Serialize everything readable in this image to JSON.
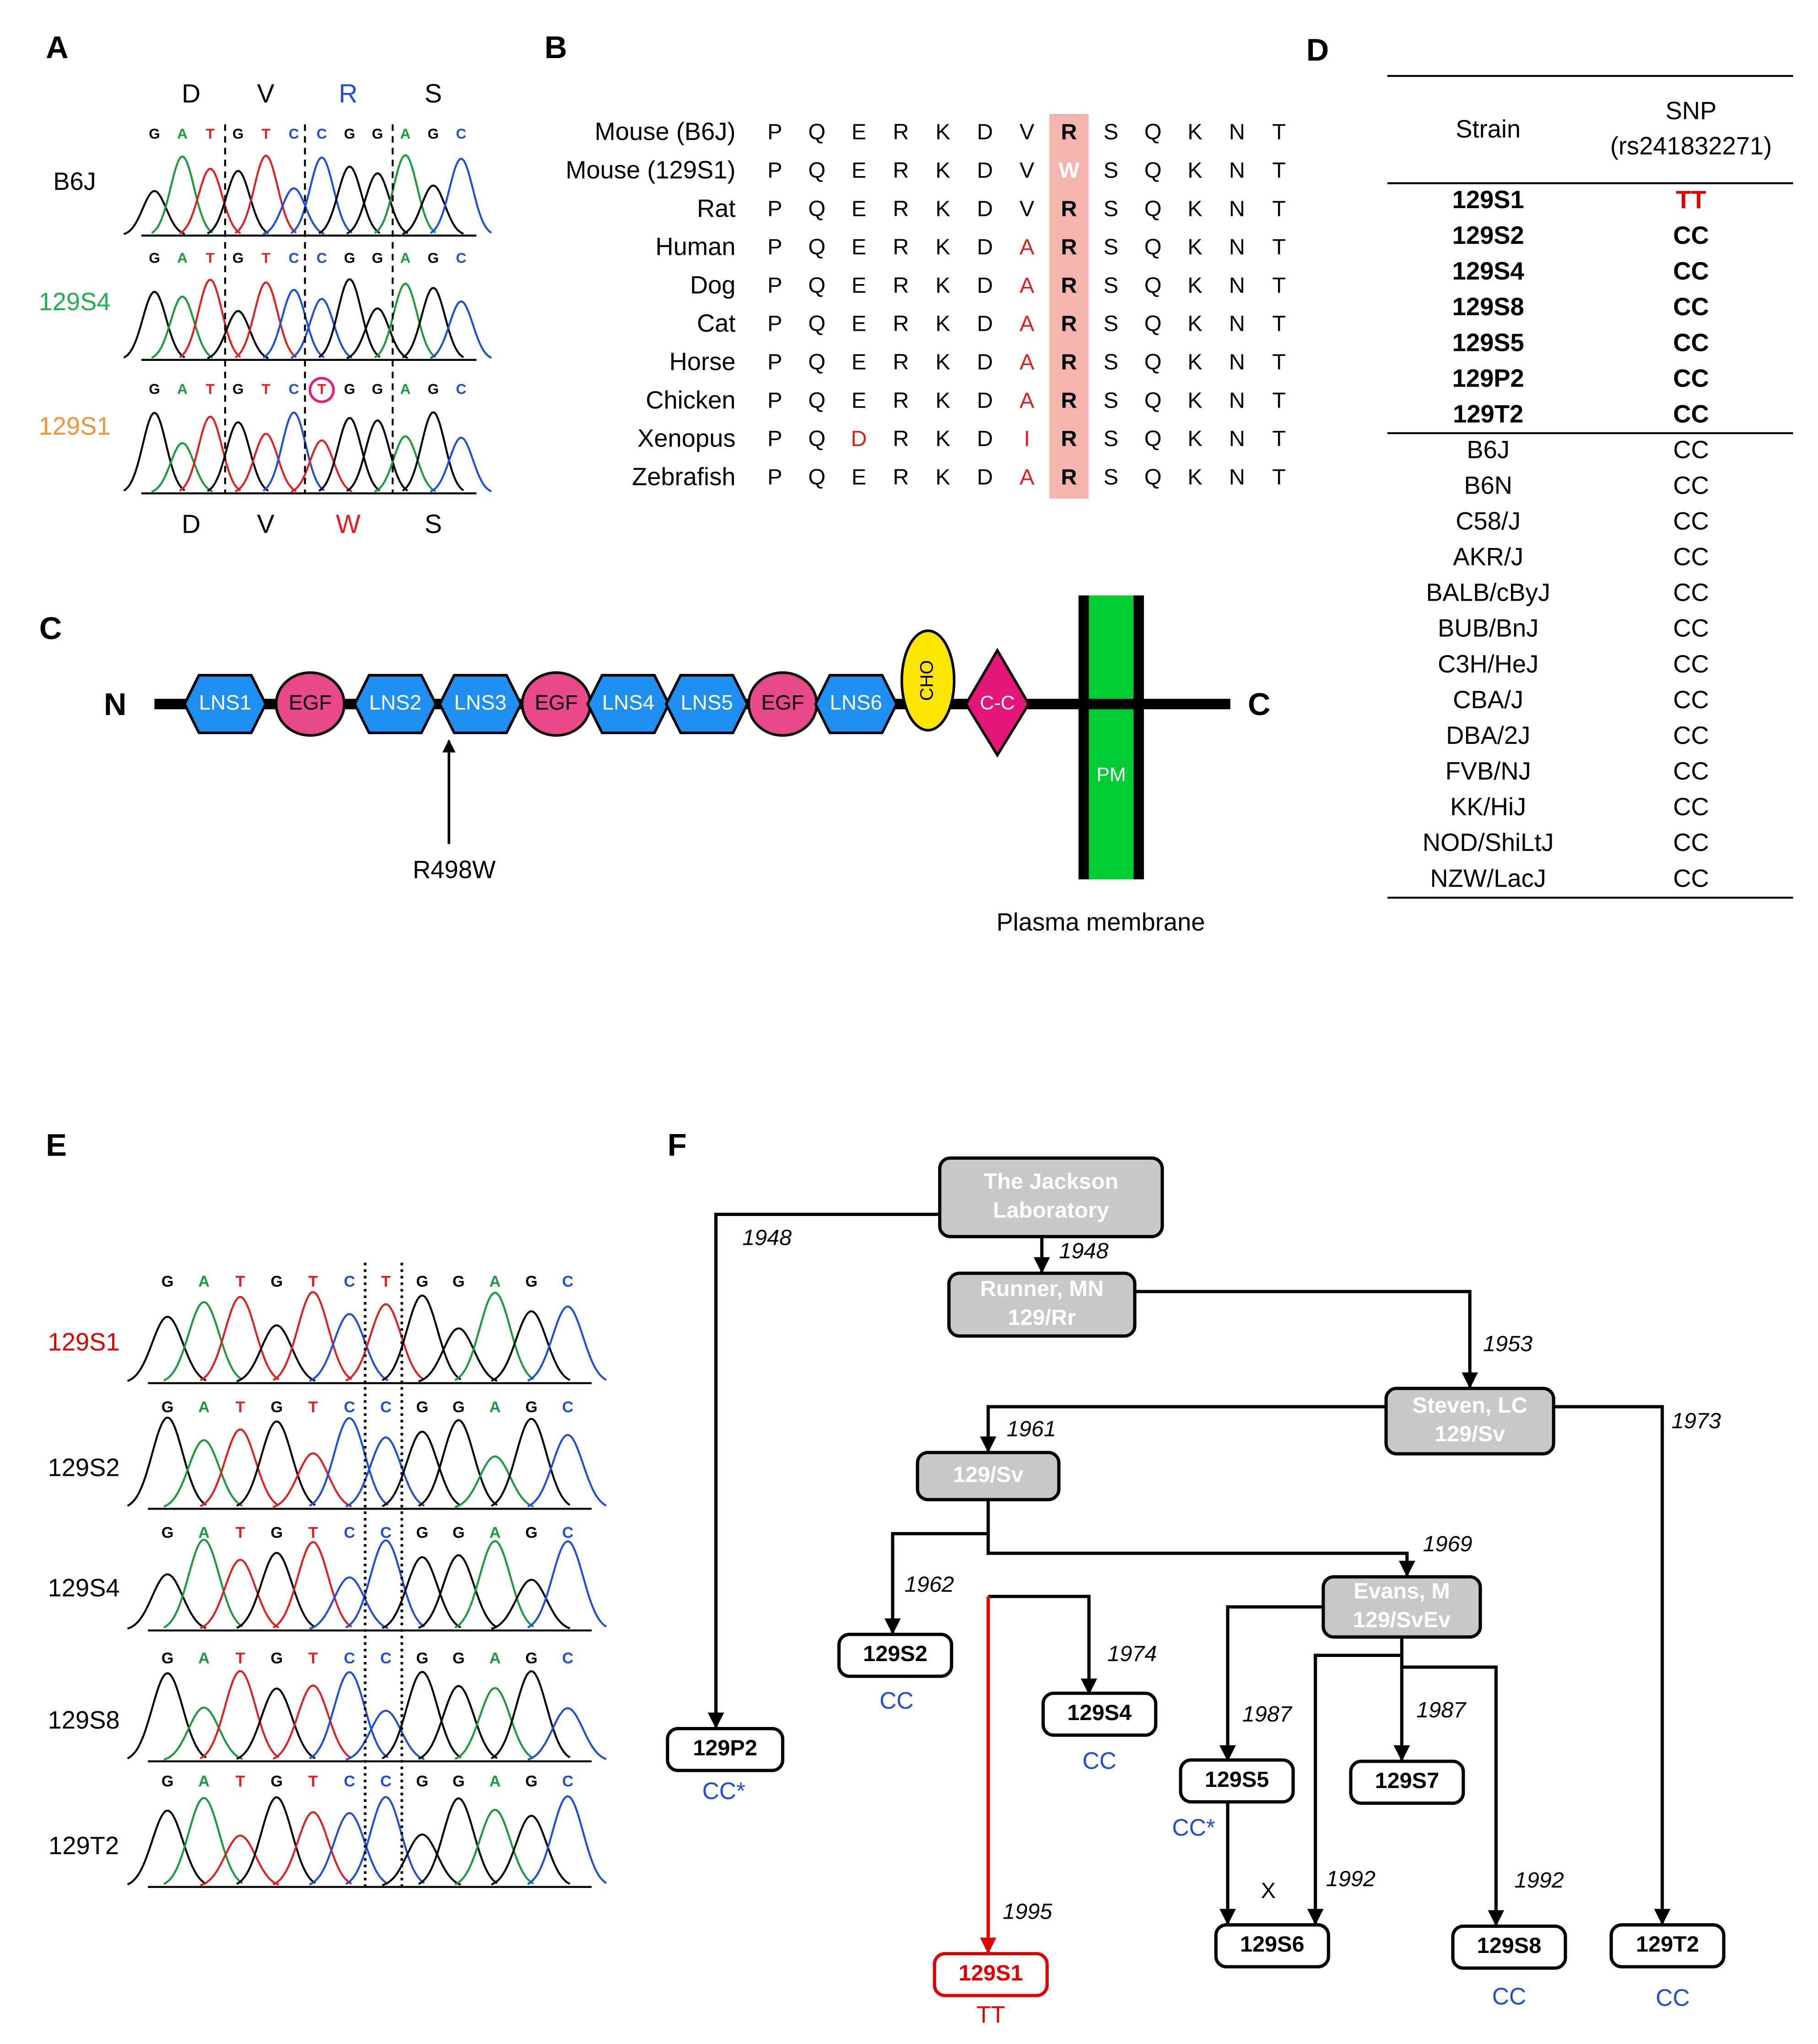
{
  "panel_labels": [
    "A",
    "B",
    "C",
    "D",
    "E",
    "F"
  ],
  "panel_a": {
    "codons_top": [
      {
        "text": "D",
        "color": "#000000"
      },
      {
        "text": "V",
        "color": "#000000"
      },
      {
        "text": "R",
        "color": "#1f4fd8"
      },
      {
        "text": "S",
        "color": "#000000"
      }
    ],
    "codons_bottom": [
      {
        "text": "D",
        "color": "#000000"
      },
      {
        "text": "V",
        "color": "#000000"
      },
      {
        "text": "W",
        "color": "#e02020"
      },
      {
        "text": "S",
        "color": "#000000"
      }
    ],
    "rows": [
      {
        "name": "B6J",
        "color": "#000000",
        "bases": [
          "G",
          "A",
          "T",
          "G",
          "T",
          "C",
          "C",
          "G",
          "G",
          "A",
          "G",
          "C"
        ]
      },
      {
        "name": "129S4",
        "color": "#22b04b",
        "bases": [
          "G",
          "A",
          "T",
          "G",
          "T",
          "C",
          "C",
          "G",
          "G",
          "A",
          "G",
          "C"
        ]
      },
      {
        "name": "129S1",
        "color": "#f39237",
        "bases": [
          "G",
          "A",
          "T",
          "G",
          "T",
          "C",
          "T",
          "G",
          "G",
          "A",
          "G",
          "C"
        ]
      }
    ]
  },
  "panel_b": {
    "rows": [
      {
        "species": "Mouse (B6J)",
        "residues": [
          "P",
          "Q",
          "E",
          "R",
          "K",
          "D",
          "V",
          "R",
          "S",
          "Q",
          "K",
          "N",
          "T"
        ]
      },
      {
        "species": "Mouse (129S1)",
        "residues": [
          "P",
          "Q",
          "E",
          "R",
          "K",
          "D",
          "V",
          "W",
          "S",
          "Q",
          "K",
          "N",
          "T"
        ]
      },
      {
        "species": "Rat",
        "residues": [
          "P",
          "Q",
          "E",
          "R",
          "K",
          "D",
          "V",
          "R",
          "S",
          "Q",
          "K",
          "N",
          "T"
        ]
      },
      {
        "species": "Human",
        "residues": [
          "P",
          "Q",
          "E",
          "R",
          "K",
          "D",
          "A",
          "R",
          "S",
          "Q",
          "K",
          "N",
          "T"
        ]
      },
      {
        "species": "Dog",
        "residues": [
          "P",
          "Q",
          "E",
          "R",
          "K",
          "D",
          "A",
          "R",
          "S",
          "Q",
          "K",
          "N",
          "T"
        ]
      },
      {
        "species": "Cat",
        "residues": [
          "P",
          "Q",
          "E",
          "R",
          "K",
          "D",
          "A",
          "R",
          "S",
          "Q",
          "K",
          "N",
          "T"
        ]
      },
      {
        "species": "Horse",
        "residues": [
          "P",
          "Q",
          "E",
          "R",
          "K",
          "D",
          "A",
          "R",
          "S",
          "Q",
          "K",
          "N",
          "T"
        ]
      },
      {
        "species": "Chicken",
        "residues": [
          "P",
          "Q",
          "E",
          "R",
          "K",
          "D",
          "A",
          "R",
          "S",
          "Q",
          "K",
          "N",
          "T"
        ]
      },
      {
        "species": "Xenopus",
        "residues": [
          "P",
          "Q",
          "D",
          "R",
          "K",
          "D",
          "I",
          "R",
          "S",
          "Q",
          "K",
          "N",
          "T"
        ]
      },
      {
        "species": "Zebrafish",
        "residues": [
          "P",
          "Q",
          "E",
          "R",
          "K",
          "D",
          "A",
          "R",
          "S",
          "Q",
          "K",
          "N",
          "T"
        ]
      }
    ]
  },
  "panel_c": {
    "n_terminus": "N",
    "c_terminus": "C",
    "domains": [
      "LNS1",
      "EGF",
      "LNS2",
      "LNS3",
      "EGF",
      "LNS4",
      "LNS5",
      "EGF",
      "LNS6",
      "CHO",
      "C-C",
      "PM"
    ],
    "mutation": "R498W",
    "membrane_label": "Plasma membrane"
  },
  "panel_d": {
    "header": {
      "strain": "Strain",
      "snp": [
        "SNP",
        "(rs241832271)"
      ]
    },
    "groups": [
      [
        {
          "strain": "129S1",
          "snp": "TT",
          "snp_color": "#e00000"
        },
        {
          "strain": "129S2",
          "snp": "CC",
          "snp_color": "#000000"
        },
        {
          "strain": "129S4",
          "snp": "CC",
          "snp_color": "#000000"
        },
        {
          "strain": "129S8",
          "snp": "CC",
          "snp_color": "#000000"
        },
        {
          "strain": "129S5",
          "snp": "CC",
          "snp_color": "#000000"
        },
        {
          "strain": "129P2",
          "snp": "CC",
          "snp_color": "#000000"
        },
        {
          "strain": "129T2",
          "snp": "CC",
          "snp_color": "#000000"
        }
      ],
      [
        {
          "strain": "B6J",
          "snp": "CC",
          "snp_color": "#000000"
        },
        {
          "strain": "B6N",
          "snp": "CC",
          "snp_color": "#000000"
        },
        {
          "strain": "C58/J",
          "snp": "CC",
          "snp_color": "#000000"
        },
        {
          "strain": "AKR/J",
          "snp": "CC",
          "snp_color": "#000000"
        },
        {
          "strain": "BALB/cByJ",
          "snp": "CC",
          "snp_color": "#000000"
        },
        {
          "strain": "BUB/BnJ",
          "snp": "CC",
          "snp_color": "#000000"
        },
        {
          "strain": "C3H/HeJ",
          "snp": "CC",
          "snp_color": "#000000"
        },
        {
          "strain": "CBA/J",
          "snp": "CC",
          "snp_color": "#000000"
        },
        {
          "strain": "DBA/2J",
          "snp": "CC",
          "snp_color": "#000000"
        },
        {
          "strain": "FVB/NJ",
          "snp": "CC",
          "snp_color": "#000000"
        },
        {
          "strain": "KK/HiJ",
          "snp": "CC",
          "snp_color": "#000000"
        },
        {
          "strain": "NOD/ShiLtJ",
          "snp": "CC",
          "snp_color": "#000000"
        },
        {
          "strain": "NZW/LacJ",
          "snp": "CC",
          "snp_color": "#000000"
        }
      ]
    ]
  },
  "panel_e": {
    "rows": [
      {
        "name": "129S1",
        "color": "#e00000",
        "bases": [
          "G",
          "A",
          "T",
          "G",
          "T",
          "C",
          "T",
          "G",
          "G",
          "A",
          "G",
          "C"
        ]
      },
      {
        "name": "129S2",
        "color": "#000000",
        "bases": [
          "G",
          "A",
          "T",
          "G",
          "T",
          "C",
          "C",
          "G",
          "G",
          "A",
          "G",
          "C"
        ]
      },
      {
        "name": "129S4",
        "color": "#000000",
        "bases": [
          "G",
          "A",
          "T",
          "G",
          "T",
          "C",
          "C",
          "G",
          "G",
          "A",
          "G",
          "C"
        ]
      },
      {
        "name": "129S8",
        "color": "#000000",
        "bases": [
          "G",
          "A",
          "T",
          "G",
          "T",
          "C",
          "C",
          "G",
          "G",
          "A",
          "G",
          "C"
        ]
      },
      {
        "name": "129T2",
        "color": "#000000",
        "bases": [
          "G",
          "A",
          "T",
          "G",
          "T",
          "C",
          "C",
          "G",
          "G",
          "A",
          "G",
          "C"
        ]
      }
    ]
  },
  "panel_f": {
    "nodes": [
      {
        "lines": [
          "The Jackson",
          "Laboratory"
        ],
        "fill": "#c8c8c8",
        "text_color": "#ffffff",
        "stroke": "#000000"
      },
      {
        "lines": [
          "Runner, MN",
          "129/Rr"
        ],
        "fill": "#c8c8c8",
        "text_color": "#ffffff",
        "stroke": "#000000"
      },
      {
        "lines": [
          "Steven, LC",
          "129/Sv"
        ],
        "fill": "#c8c8c8",
        "text_color": "#ffffff",
        "stroke": "#000000"
      },
      {
        "lines": [
          "129/Sv"
        ],
        "fill": "#c8c8c8",
        "text_color": "#ffffff",
        "stroke": "#000000"
      },
      {
        "lines": [
          "Evans, M",
          "129/SvEv"
        ],
        "fill": "#c8c8c8",
        "text_color": "#ffffff",
        "stroke": "#000000"
      },
      {
        "lines": [
          "129P2"
        ],
        "fill": "#ffffff",
        "text_color": "#000000",
        "stroke": "#000000",
        "genotype": "CC*",
        "genotype_color": "#1f4fd8"
      },
      {
        "lines": [
          "129S2"
        ],
        "fill": "#ffffff",
        "text_color": "#000000",
        "stroke": "#000000",
        "genotype": "CC",
        "genotype_color": "#1f4fd8"
      },
      {
        "lines": [
          "129S4"
        ],
        "fill": "#ffffff",
        "text_color": "#000000",
        "stroke": "#000000",
        "genotype": "CC",
        "genotype_color": "#1f4fd8"
      },
      {
        "lines": [
          "129S5"
        ],
        "fill": "#ffffff",
        "text_color": "#000000",
        "stroke": "#000000",
        "genotype": "CC*",
        "genotype_color": "#1f4fd8"
      },
      {
        "lines": [
          "129S7"
        ],
        "fill": "#ffffff",
        "text_color": "#000000",
        "stroke": "#000000"
      },
      {
        "lines": [
          "129S6"
        ],
        "fill": "#ffffff",
        "text_color": "#000000",
        "stroke": "#000000"
      },
      {
        "lines": [
          "129S8"
        ],
        "fill": "#ffffff",
        "text_color": "#000000",
        "stroke": "#000000",
        "genotype": "CC",
        "genotype_color": "#1f4fd8"
      },
      {
        "lines": [
          "129T2"
        ],
        "fill": "#ffffff",
        "text_color": "#000000",
        "stroke": "#000000",
        "genotype": "CC",
        "genotype_color": "#1f4fd8"
      },
      {
        "lines": [
          "129S1"
        ],
        "fill": "#ffffff",
        "text_color": "#e00000",
        "stroke": "#e00000",
        "genotype": "TT",
        "genotype_color": "#e00000"
      }
    ],
    "edges": [
      {
        "year": "1948",
        "color": "#000000"
      },
      {
        "year": "1948",
        "color": "#000000"
      },
      {
        "year": "1953",
        "color": "#000000"
      },
      {
        "year": "1961",
        "color": "#000000"
      },
      {
        "year": "1973",
        "color": "#000000"
      },
      {
        "year": "1969",
        "color": "#000000"
      },
      {
        "year": "1962",
        "color": "#000000"
      },
      {
        "year": "1974",
        "color": "#000000"
      },
      {
        "year": "1995",
        "color": "#e00000"
      },
      {
        "year": "1987",
        "color": "#000000"
      },
      {
        "year": "1987",
        "color": "#000000"
      },
      {
        "year": "1992",
        "color": "#000000"
      },
      {
        "year": "1992",
        "color": "#000000"
      },
      {
        "label": "X",
        "color": "#000000"
      }
    ]
  }
}
